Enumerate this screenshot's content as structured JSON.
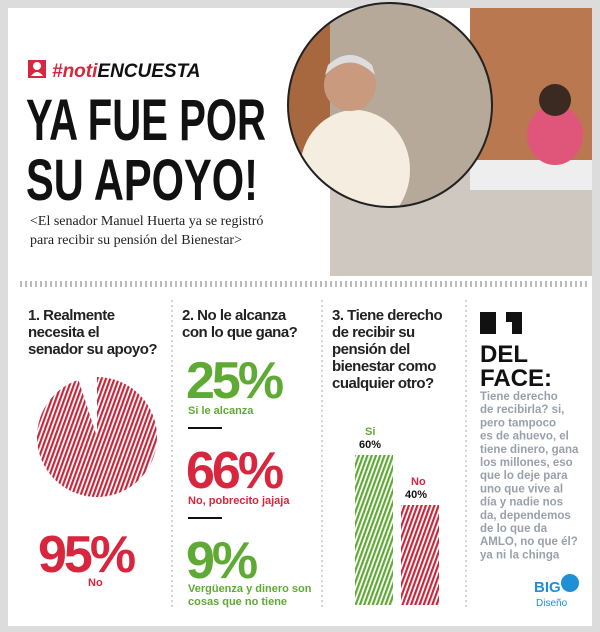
{
  "header": {
    "hashtag_prefix": "#noti",
    "hashtag_suffix": "ENCUESTA",
    "title_lines": [
      "YA FUE POR",
      "SU APOYO!"
    ],
    "subtitle_lines": [
      "<El senador Manuel Huerta ya se registró",
      "para recibir su pensión del Bienestar>"
    ]
  },
  "questions": [
    {
      "question_lines": [
        "1. Realmente",
        "necesita el",
        "senador su apoyo?"
      ],
      "value": 95,
      "value_label": "95%",
      "answer": "No"
    },
    {
      "question_lines": [
        "2. No le alcanza",
        "con lo que gana?"
      ],
      "answers": [
        {
          "label": "25%",
          "text": "Si le alcanza"
        },
        {
          "label": "66%",
          "text": "No, pobrecito jajaja"
        },
        {
          "label": "9%",
          "text": [
            "Vergüenza y dinero son",
            "cosas que no tiene"
          ]
        }
      ]
    },
    {
      "question_lines": [
        "3. Tiene derecho",
        "de recibir su",
        "pensión del",
        "bienestar como",
        "cualquier otro?"
      ],
      "bars": [
        {
          "name": "Si",
          "value": 60,
          "value_label": "60%"
        },
        {
          "name": "No",
          "value": 40,
          "value_label": "40%"
        }
      ]
    }
  ],
  "face": {
    "heading_lines": [
      "DEL",
      "FACE:"
    ],
    "text_lines": [
      "Tiene derecho",
      "de recibirla? si,",
      "pero tampoco",
      "es de ahuevo, el",
      "tiene dinero, gana",
      "los millones, eso",
      "que lo deje para",
      "uno que vive al",
      "día y nadie nos",
      "da, dependemos",
      "de lo que da",
      "AMLO, no que él?",
      "ya ni la chinga"
    ]
  },
  "logo": {
    "name": "BIG",
    "sub": "Diseño"
  }
}
